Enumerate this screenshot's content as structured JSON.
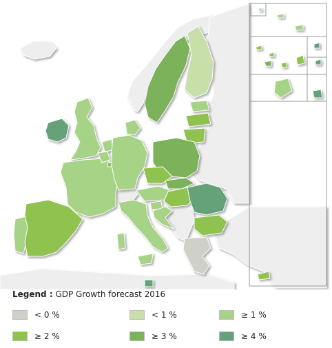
{
  "legend": {
    "label": "Legend :",
    "subtitle": "GDP Growth forecast 2016",
    "classes": [
      {
        "id": "lt0",
        "label": "< 0 %",
        "color": "#cfd0c8"
      },
      {
        "id": "lt1",
        "label": "< 1 %",
        "color": "#c9dfaa"
      },
      {
        "id": "ge1",
        "label": "≥ 1 %",
        "color": "#a6d386"
      },
      {
        "id": "ge2",
        "label": "≥ 2 %",
        "color": "#8fc24e"
      },
      {
        "id": "ge3",
        "label": "≥ 3 %",
        "color": "#7bb25a"
      },
      {
        "id": "ge4",
        "label": "≥ 4 %",
        "color": "#65a27a"
      }
    ]
  },
  "colors": {
    "non_member": "#eeeeee",
    "border": "#ffffff",
    "frame": "#999999"
  },
  "countries": {
    "Ireland": "ge4",
    "United Kingdom": "ge1",
    "Portugal": "ge1",
    "Spain": "ge2",
    "France": "ge1",
    "Belgium": "ge1",
    "Netherlands": "ge1",
    "Luxembourg": "ge2",
    "Germany": "ge1",
    "Denmark": "ge1",
    "Sweden": "ge3",
    "Finland": "lt1",
    "Estonia": "ge1",
    "Latvia": "ge2",
    "Lithuania": "ge2",
    "Poland": "ge3",
    "Czech Republic": "ge2",
    "Slovakia": "ge3",
    "Austria": "ge1",
    "Hungary": "ge2",
    "Slovenia": "ge1",
    "Croatia": "ge1",
    "Italy": "ge1",
    "Romania": "ge4",
    "Bulgaria": "ge2",
    "Greece": "lt0",
    "Cyprus": "ge2",
    "Malta": "ge4"
  }
}
